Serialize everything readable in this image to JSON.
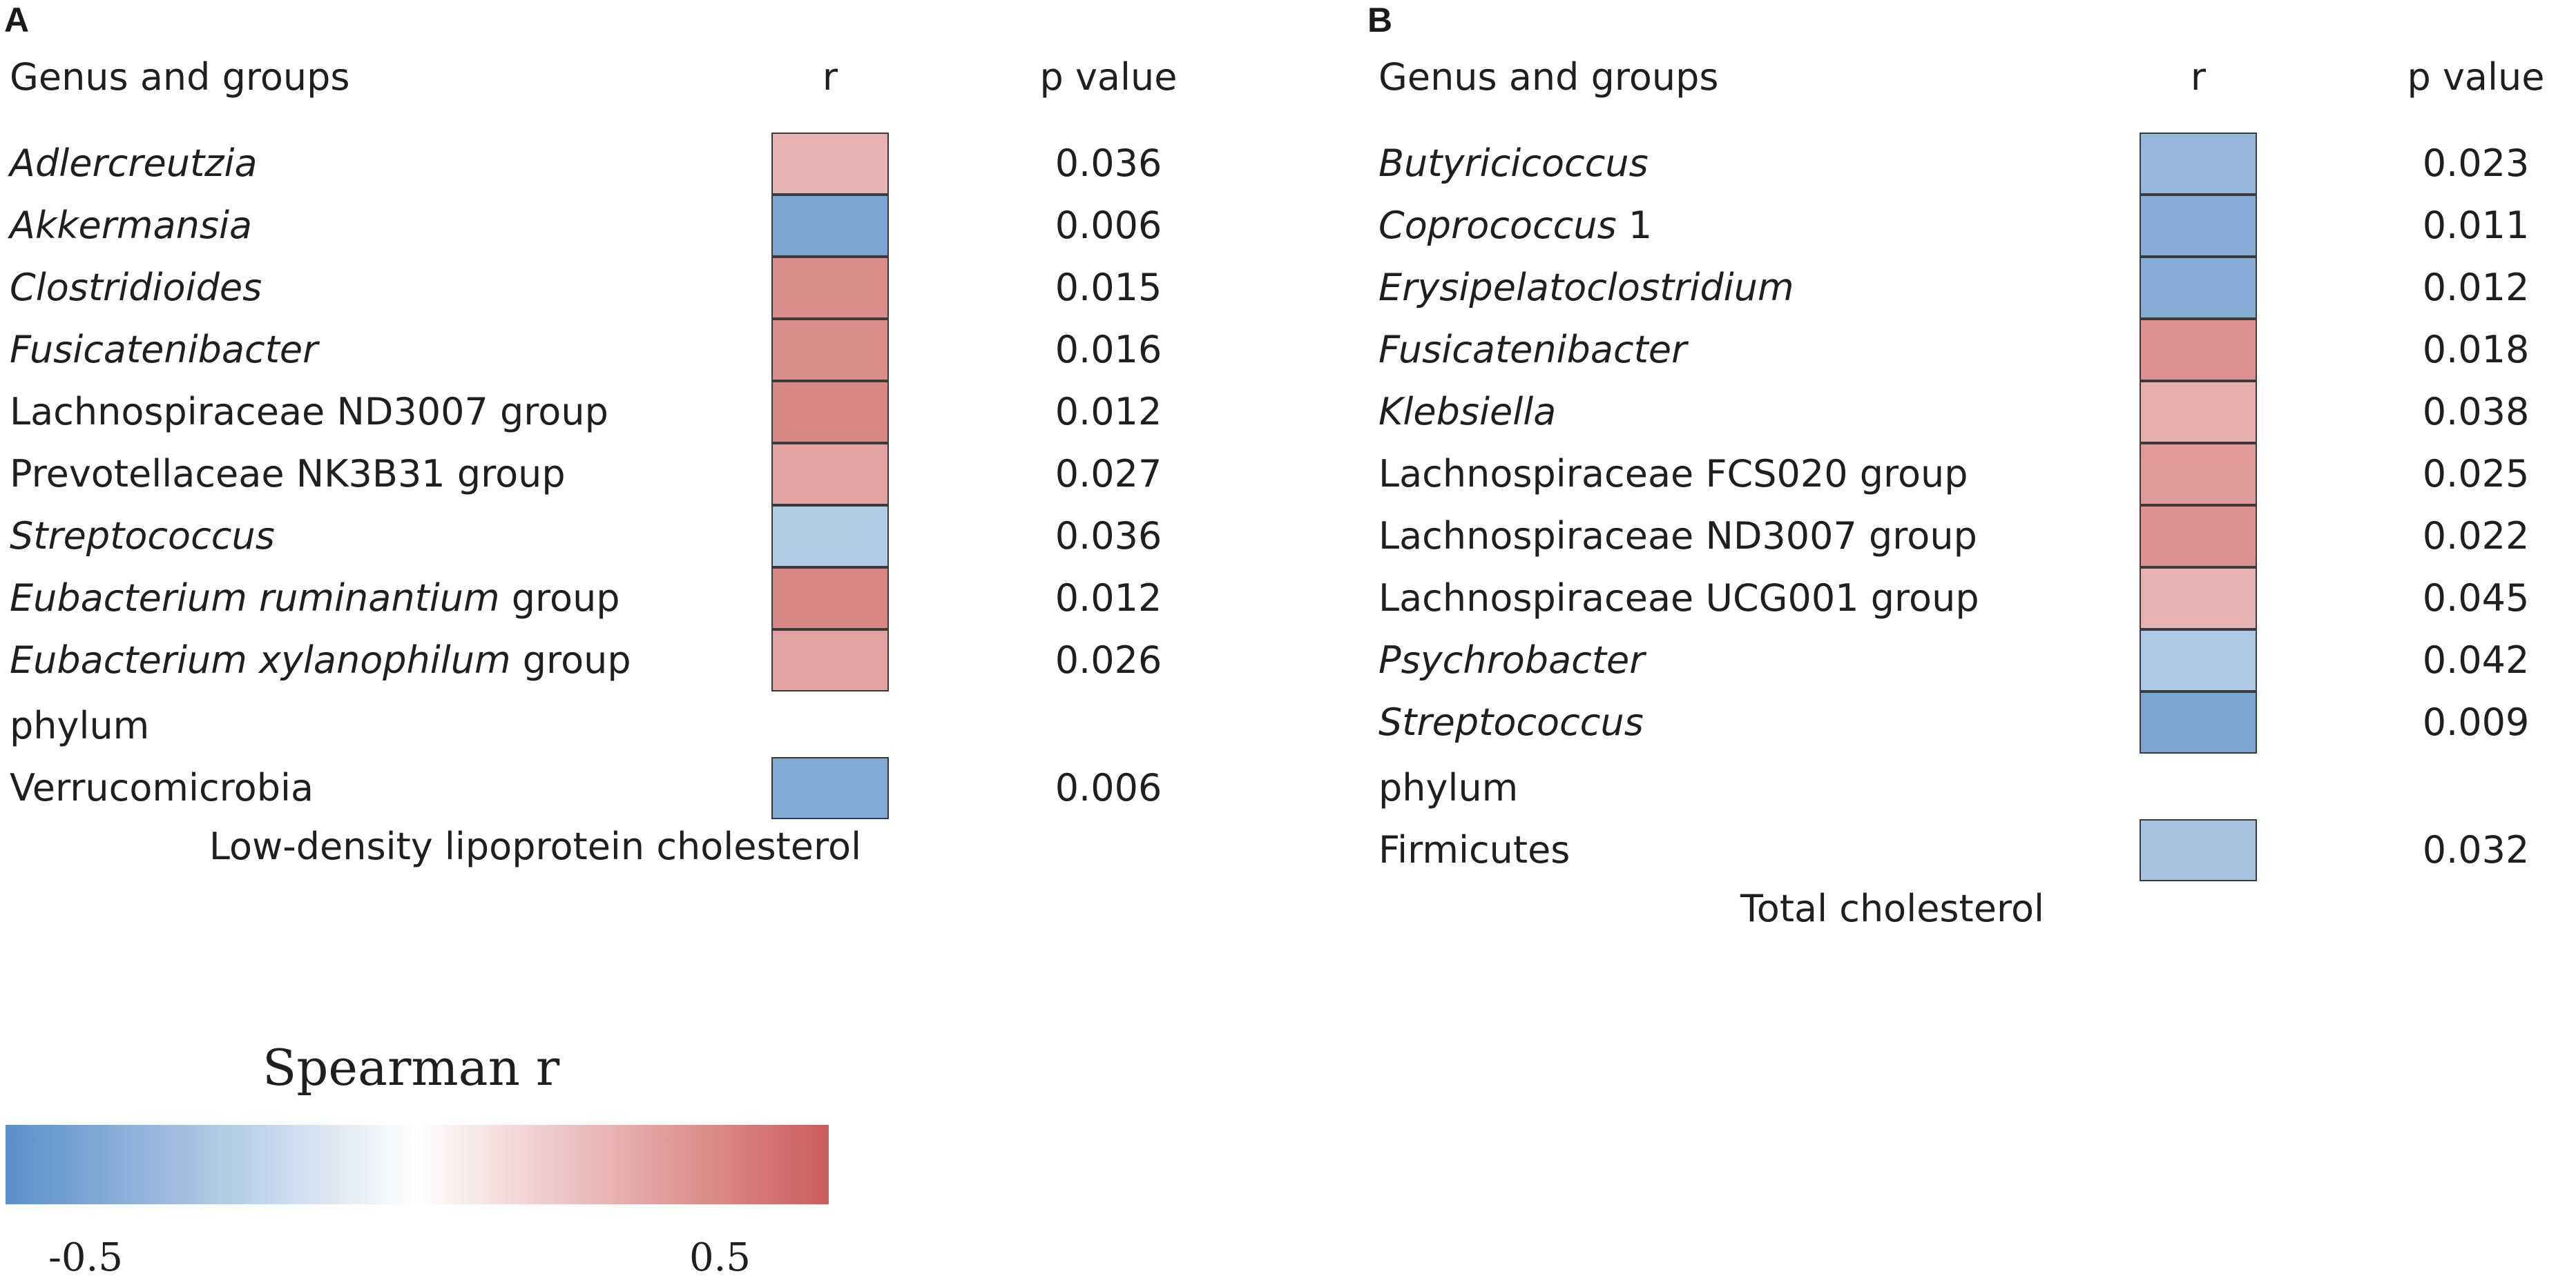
{
  "chart_data": [
    {
      "type": "heatmap",
      "panel": "A",
      "title": "Low-density lipoprotein cholesterol",
      "headers": {
        "name": "Genus and groups",
        "r": "r",
        "p": "p value"
      },
      "rows": [
        {
          "parts": [
            {
              "t": "Adlercreutzia",
              "i": true
            }
          ],
          "r": 0.28,
          "p": "0.036"
        },
        {
          "parts": [
            {
              "t": "Akkermansia",
              "i": true
            }
          ],
          "r": -0.48,
          "p": "0.006"
        },
        {
          "parts": [
            {
              "t": "Clostridioides",
              "i": true
            }
          ],
          "r": 0.42,
          "p": "0.015"
        },
        {
          "parts": [
            {
              "t": "Fusicatenibacter",
              "i": true
            }
          ],
          "r": 0.42,
          "p": "0.016"
        },
        {
          "parts": [
            {
              "t": "Lachnospiraceae ND3007 group",
              "i": false
            }
          ],
          "r": 0.45,
          "p": "0.012"
        },
        {
          "parts": [
            {
              "t": "Prevotellaceae NK3B31 group",
              "i": false
            }
          ],
          "r": 0.34,
          "p": "0.027"
        },
        {
          "parts": [
            {
              "t": "Streptococcus",
              "i": true
            }
          ],
          "r": -0.28,
          "p": "0.036"
        },
        {
          "parts": [
            {
              "t": "Eubacterium ruminantium",
              "i": true
            },
            {
              "t": " group",
              "i": false
            }
          ],
          "r": 0.45,
          "p": "0.012"
        },
        {
          "parts": [
            {
              "t": "Eubacterium xylanophilum",
              "i": true
            },
            {
              "t": " group",
              "i": false
            }
          ],
          "r": 0.34,
          "p": "0.026"
        }
      ],
      "phylum_label": "phylum",
      "phylum_rows": [
        {
          "parts": [
            {
              "t": "Verrucomicrobia",
              "i": false
            }
          ],
          "r": -0.45,
          "p": "0.006"
        }
      ]
    },
    {
      "type": "heatmap",
      "panel": "B",
      "title": "Total cholesterol",
      "headers": {
        "name": "Genus and groups",
        "r": "r",
        "p": "p value"
      },
      "rows": [
        {
          "parts": [
            {
              "t": "Butyricicoccus",
              "i": true
            }
          ],
          "r": -0.38,
          "p": "0.023"
        },
        {
          "parts": [
            {
              "t": "Coprococcus",
              "i": true
            },
            {
              "t": " 1",
              "i": false
            }
          ],
          "r": -0.44,
          "p": "0.011"
        },
        {
          "parts": [
            {
              "t": "Erysipelatoclostridium",
              "i": true
            }
          ],
          "r": -0.44,
          "p": "0.012"
        },
        {
          "parts": [
            {
              "t": "Fusicatenibacter",
              "i": true
            }
          ],
          "r": 0.4,
          "p": "0.018"
        },
        {
          "parts": [
            {
              "t": "Klebsiella",
              "i": true
            }
          ],
          "r": 0.3,
          "p": "0.038"
        },
        {
          "parts": [
            {
              "t": "Lachnospiraceae FCS020 group",
              "i": false
            }
          ],
          "r": 0.37,
          "p": "0.025"
        },
        {
          "parts": [
            {
              "t": "Lachnospiraceae ND3007 group",
              "i": false
            }
          ],
          "r": 0.4,
          "p": "0.022"
        },
        {
          "parts": [
            {
              "t": "Lachnospiraceae UCG001 group",
              "i": false
            }
          ],
          "r": 0.28,
          "p": "0.045"
        },
        {
          "parts": [
            {
              "t": "Psychrobacter",
              "i": true
            }
          ],
          "r": -0.3,
          "p": "0.042"
        },
        {
          "parts": [
            {
              "t": "Streptococcus",
              "i": true
            }
          ],
          "r": -0.48,
          "p": "0.009"
        }
      ],
      "phylum_label": "phylum",
      "phylum_rows": [
        {
          "parts": [
            {
              "t": "Firmicutes",
              "i": false
            }
          ],
          "r": -0.32,
          "p": "0.032"
        }
      ]
    }
  ],
  "legend": {
    "title": "Spearman r",
    "min_label": "-0.5",
    "max_label": "0.5",
    "min_value": -0.6,
    "max_value": 0.6,
    "neg_color": "#5b8fc9",
    "mid_color": "#ffffff",
    "pos_color": "#cc5c5a"
  }
}
